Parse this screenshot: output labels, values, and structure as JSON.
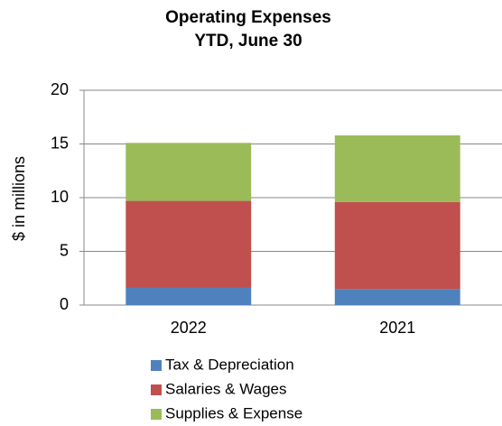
{
  "chart_data": {
    "type": "stacked_bar",
    "title": "Operating Expenses",
    "subtitle": "YTD, June 30",
    "y_label": "$ in millions",
    "categories": [
      "2022",
      "2021"
    ],
    "series": [
      {
        "name": "Tax & Depreciation",
        "color": "#4f81bd",
        "values": [
          1.6,
          1.5
        ]
      },
      {
        "name": "Salaries & Wages",
        "color": "#c0504d",
        "values": [
          8.1,
          8.1
        ]
      },
      {
        "name": "Supplies & Expense",
        "color": "#9bbb59",
        "values": [
          5.4,
          6.2
        ]
      }
    ],
    "ylim": [
      0,
      20
    ],
    "yticks": [
      0,
      5,
      10,
      15,
      20
    ],
    "grid": true,
    "legend": "bottom"
  }
}
